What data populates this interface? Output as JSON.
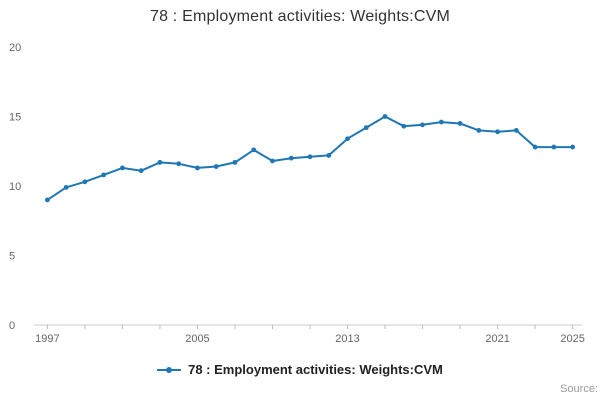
{
  "title": "78 : Employment activities: Weights:CVM",
  "legend": {
    "label": "78 : Employment activities: Weights:CVM"
  },
  "source_label": "Source:",
  "colors": {
    "accent": "#1f77b4",
    "axis": "#cccccc",
    "tick": "#bbbbbb",
    "tick_label": "#666666"
  },
  "chart_data": {
    "type": "line",
    "title": "78 : Employment activities: Weights:CVM",
    "xlabel": "",
    "ylabel": "",
    "xlim": [
      1996.5,
      2025.5
    ],
    "ylim": [
      0,
      20
    ],
    "y_ticks": [
      0,
      5,
      10,
      15,
      20
    ],
    "x_tick_labels": [
      1997,
      2005,
      2013,
      2021,
      2025
    ],
    "x_minor_tick_start": 1997,
    "x_minor_tick_step": 2,
    "grid": false,
    "legend_position": "bottom",
    "series": [
      {
        "name": "78 : Employment activities: Weights:CVM",
        "color": "#1f77b4",
        "x": [
          1997,
          1998,
          1999,
          2000,
          2001,
          2002,
          2003,
          2004,
          2005,
          2006,
          2007,
          2008,
          2009,
          2010,
          2011,
          2012,
          2013,
          2014,
          2015,
          2016,
          2017,
          2018,
          2019,
          2020,
          2021,
          2022,
          2023,
          2024,
          2025
        ],
        "values": [
          9.0,
          9.9,
          10.3,
          10.8,
          11.3,
          11.1,
          11.7,
          11.6,
          11.3,
          11.4,
          11.7,
          12.6,
          11.8,
          12.0,
          12.1,
          12.2,
          13.4,
          14.2,
          15.0,
          14.3,
          14.4,
          14.6,
          14.5,
          14.0,
          13.9,
          14.0,
          12.8,
          12.8,
          12.8
        ]
      }
    ]
  }
}
